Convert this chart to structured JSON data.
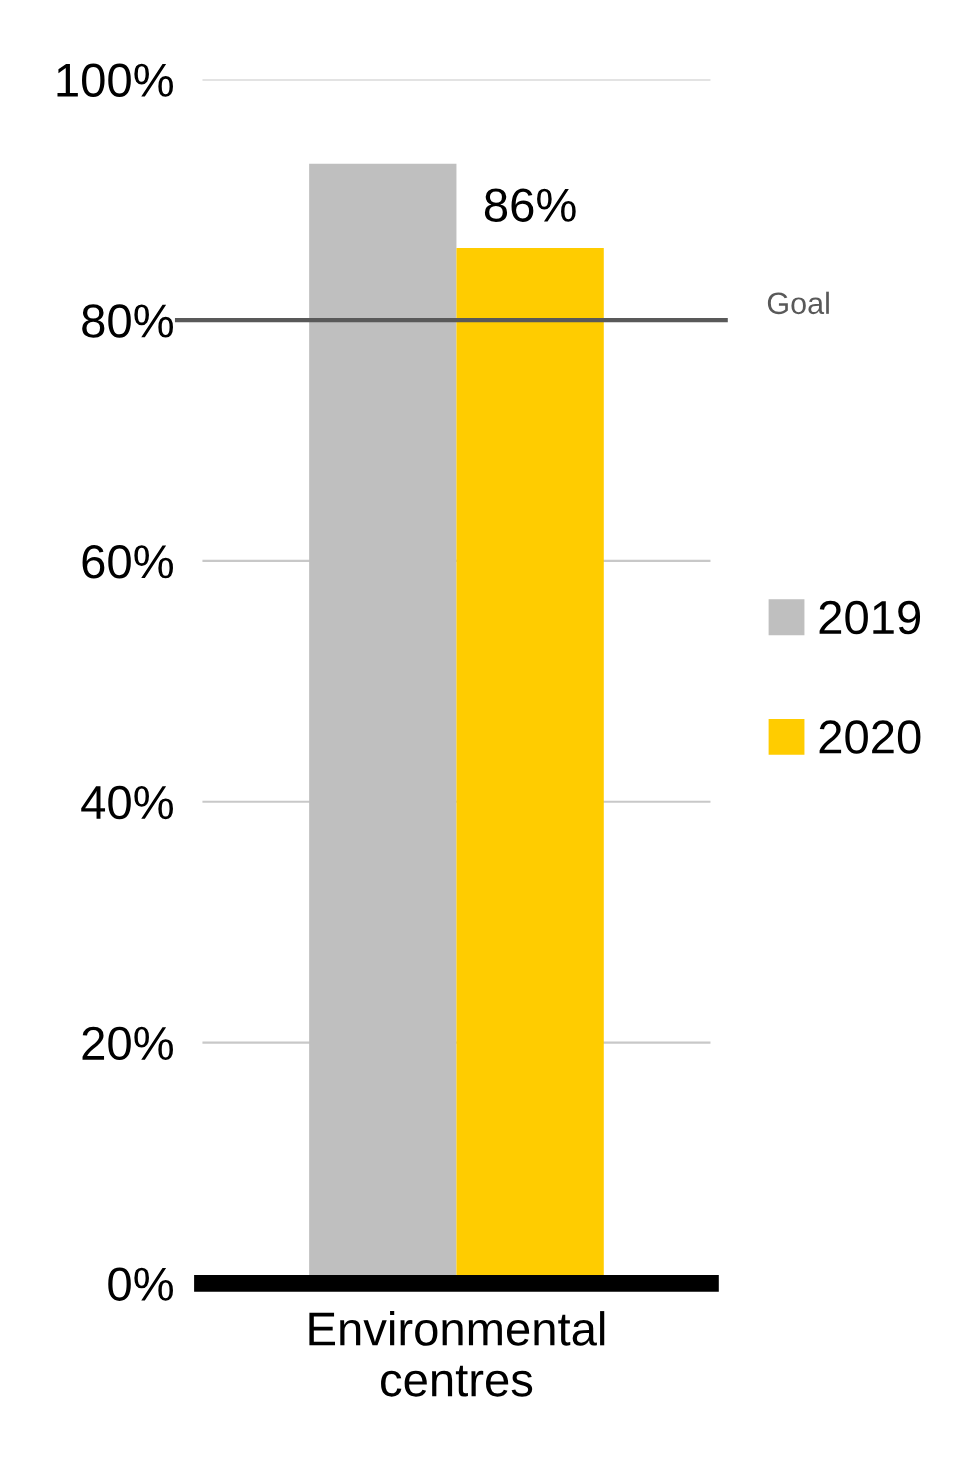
{
  "chart_data": {
    "type": "bar",
    "categories": [
      "Environmental\ncentres"
    ],
    "series": [
      {
        "name": "2019",
        "color": "#bfbfbf",
        "values": [
          93
        ]
      },
      {
        "name": "2020",
        "color": "#ffcc00",
        "values": [
          86
        ],
        "value_labels": [
          "86%"
        ]
      }
    ],
    "ylim": [
      0,
      100
    ],
    "yticks": [
      {
        "value": 0,
        "label": "0%"
      },
      {
        "value": 20,
        "label": "20%"
      },
      {
        "value": 40,
        "label": "40%"
      },
      {
        "value": 60,
        "label": "60%"
      },
      {
        "value": 80,
        "label": "80%"
      },
      {
        "value": 100,
        "label": "100%"
      }
    ],
    "grid": "y",
    "legend": "right",
    "ref_lines": [
      {
        "axis": "y",
        "value": 80,
        "label": "Goal",
        "color": "#595959"
      }
    ]
  }
}
